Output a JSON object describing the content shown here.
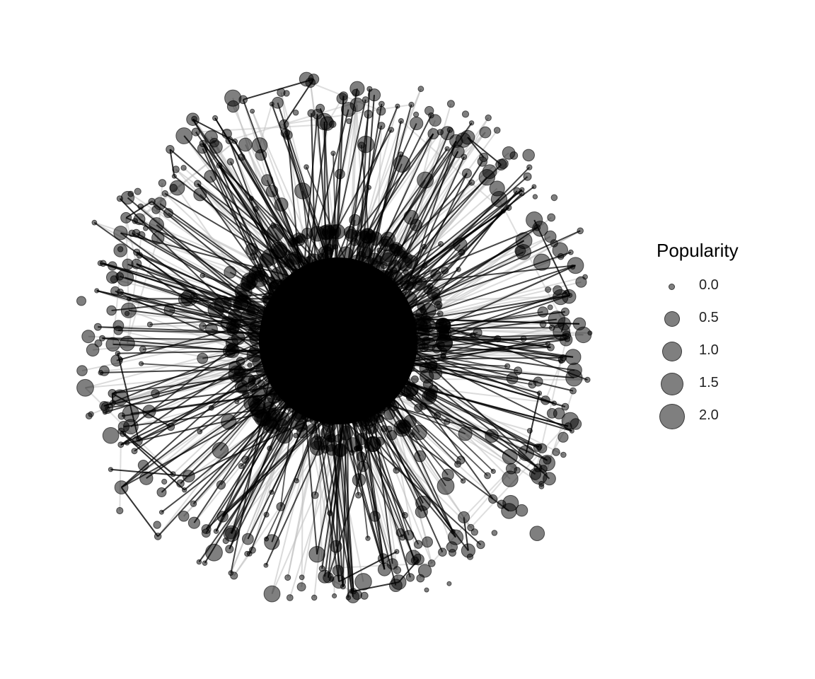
{
  "legend": {
    "title": "Popularity",
    "entries": [
      {
        "label": "0.0",
        "value": 0.0
      },
      {
        "label": "0.5",
        "value": 0.5
      },
      {
        "label": "1.0",
        "value": 1.0
      },
      {
        "label": "1.5",
        "value": 1.5
      },
      {
        "label": "2.0",
        "value": 2.0
      }
    ]
  },
  "colors": {
    "node_fill": "#000000",
    "edge_strong": "#000000",
    "edge_faint": "#bdbdbd",
    "background": "#ffffff"
  }
}
